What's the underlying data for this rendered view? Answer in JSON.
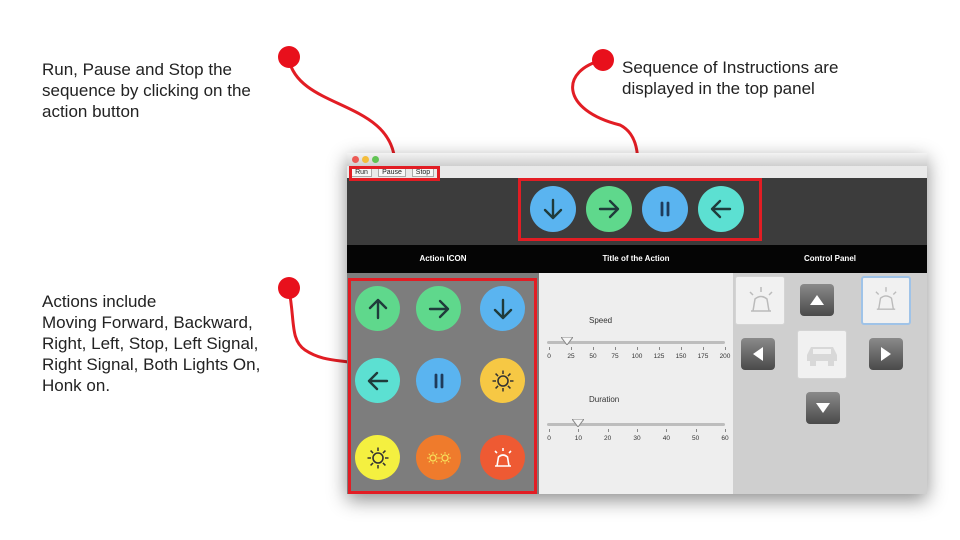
{
  "annotations": {
    "run_pause_stop": "Run, Pause and Stop the\nsequence by clicking on the\naction button",
    "sequence": "Sequence of Instructions are\ndisplayed in the top panel",
    "actions": "Actions include\nMoving Forward, Backward,\nRight, Left, Stop, Left Signal,\nRight Signal, Both Lights On,\nHonk on."
  },
  "toolbar": {
    "run": "Run",
    "pause": "Pause",
    "stop": "Stop"
  },
  "sequence": [
    {
      "icon": "arrow-down-icon",
      "color": "#5ab4f0"
    },
    {
      "icon": "arrow-right-icon",
      "color": "#5fd88c"
    },
    {
      "icon": "pause-icon",
      "color": "#5ab4f0"
    },
    {
      "icon": "arrow-left-icon",
      "color": "#5ce0d2"
    }
  ],
  "headers": {
    "action_icon": "Action ICON",
    "title": "Title of the Action",
    "control": "Control Panel"
  },
  "actions": [
    {
      "icon": "arrow-up-icon",
      "color": "#5fd88c"
    },
    {
      "icon": "arrow-right-icon",
      "color": "#5fd88c"
    },
    {
      "icon": "arrow-down-icon",
      "color": "#5ab4f0"
    },
    {
      "icon": "arrow-left-icon",
      "color": "#5ce0d2"
    },
    {
      "icon": "pause-icon",
      "color": "#5ab4f0"
    },
    {
      "icon": "right-signal-icon",
      "color": "#f6c844"
    },
    {
      "icon": "left-signal-icon",
      "color": "#f4f040"
    },
    {
      "icon": "both-lights-icon",
      "color": "#ef7b2c"
    },
    {
      "icon": "horn-icon",
      "color": "#ee5a33"
    }
  ],
  "speed": {
    "label": "Speed",
    "ticks": [
      "0",
      "25",
      "50",
      "75",
      "100",
      "125",
      "150",
      "175",
      "200"
    ],
    "value": 20
  },
  "duration": {
    "label": "Duration",
    "ticks": [
      "0",
      "10",
      "20",
      "30",
      "40",
      "50",
      "60"
    ],
    "value": 10
  },
  "colors": {
    "annotation_red": "#e21d24",
    "dark_band": "#3c3c3c",
    "header_black": "#050505"
  }
}
